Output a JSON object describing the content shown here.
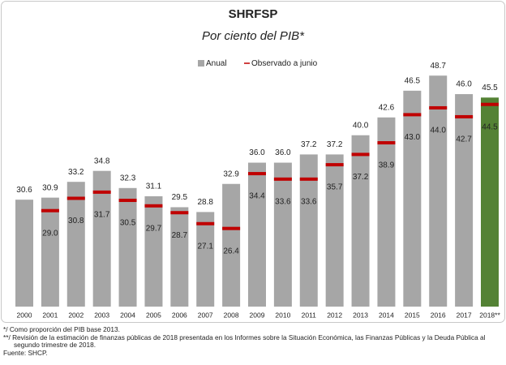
{
  "chart_data": {
    "type": "bar",
    "title": "SHRFSP",
    "subtitle": "Por ciento del PIB*",
    "categories": [
      "2000",
      "2001",
      "2002",
      "2003",
      "2004",
      "2005",
      "2006",
      "2007",
      "2008",
      "2009",
      "2010",
      "2011",
      "2012",
      "2013",
      "2014",
      "2015",
      "2016",
      "2017",
      "2018**"
    ],
    "series": [
      {
        "name": "Anual",
        "color": "#a6a6a6",
        "colors": [
          "#a6a6a6",
          "#a6a6a6",
          "#a6a6a6",
          "#a6a6a6",
          "#a6a6a6",
          "#a6a6a6",
          "#a6a6a6",
          "#a6a6a6",
          "#a6a6a6",
          "#a6a6a6",
          "#a6a6a6",
          "#a6a6a6",
          "#a6a6a6",
          "#a6a6a6",
          "#a6a6a6",
          "#a6a6a6",
          "#a6a6a6",
          "#a6a6a6",
          "#548235"
        ],
        "values": [
          30.6,
          30.9,
          33.2,
          34.8,
          32.3,
          31.1,
          29.5,
          28.8,
          32.9,
          36.0,
          36.0,
          37.2,
          37.2,
          40.0,
          42.6,
          46.5,
          48.7,
          46.0,
          45.5
        ],
        "value_labels": [
          "30.6",
          "30.9",
          "33.2",
          "34.8",
          "32.3",
          "31.1",
          "29.5",
          "28.8",
          "32.9",
          "36.0",
          "36.0",
          "37.2",
          "37.2",
          "40.0",
          "42.6",
          "46.5",
          "48.7",
          "46.0",
          "45.5"
        ]
      },
      {
        "name": "Observado a junio",
        "color": "#c00000",
        "values": [
          null,
          29.0,
          30.8,
          31.7,
          30.5,
          29.7,
          28.7,
          27.1,
          26.4,
          34.4,
          33.6,
          33.6,
          35.7,
          37.2,
          38.9,
          43.0,
          44.0,
          42.7,
          44.5
        ],
        "value_labels": [
          null,
          "29.0",
          "30.8",
          "31.7",
          "30.5",
          "29.7",
          "28.7",
          "27.1",
          "26.4",
          "34.4",
          "33.6",
          "33.6",
          "35.7",
          "37.2",
          "38.9",
          "43.0",
          "44.0",
          "42.7",
          "44.5"
        ]
      }
    ],
    "ylim": [
      15,
      55
    ],
    "footnotes": [
      "*/ Como proporción del PIB base 2013.",
      "**/ Revisión de la estimación de finanzas públicas de 2018 presentada en los Informes sobre la Situación Económica, las Finanzas Públicas y la Deuda Pública al segundo trimestre de 2018.",
      "Fuente: SHCP."
    ]
  }
}
